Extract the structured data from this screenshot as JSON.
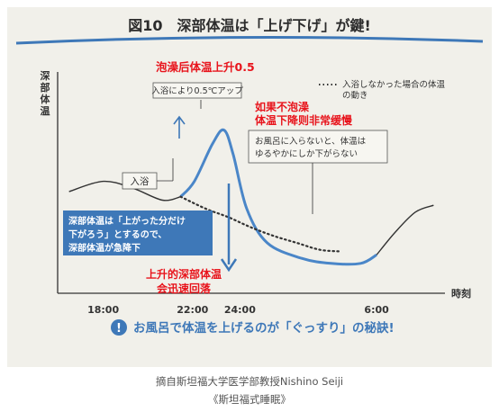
{
  "figure_title": "図10　深部体温は「上げ下げ」が鍵!",
  "chart_data": {
    "type": "line",
    "ylabel": "深部体温",
    "xlabel": "時刻",
    "x_ticks": [
      "18:00",
      "22:00",
      "24:00",
      "6:00"
    ],
    "series": [
      {
        "name": "入浴",
        "style": "solid",
        "color": "#4a86c8",
        "points": [
          [
            16.5,
            0.5
          ],
          [
            18.0,
            0.56
          ],
          [
            19.3,
            0.52
          ],
          [
            20.6,
            0.45
          ],
          [
            21.4,
            0.47
          ],
          [
            22.0,
            0.56
          ],
          [
            22.8,
            0.78
          ],
          [
            23.3,
            0.86
          ],
          [
            23.7,
            0.72
          ],
          [
            24.3,
            0.4
          ],
          [
            25.2,
            0.2
          ],
          [
            26.7,
            0.11
          ],
          [
            28.0,
            0.08
          ],
          [
            29.3,
            0.08
          ],
          [
            30.0,
            0.13
          ],
          [
            30.8,
            0.26
          ],
          [
            31.7,
            0.38
          ],
          [
            32.5,
            0.42
          ]
        ]
      },
      {
        "name": "入浴しなかった場合の体温の動き",
        "style": "dotted",
        "color": "#333333",
        "points": [
          [
            21.4,
            0.47
          ],
          [
            22.5,
            0.4
          ],
          [
            23.5,
            0.35
          ],
          [
            24.5,
            0.29
          ],
          [
            25.5,
            0.24
          ],
          [
            26.5,
            0.2
          ],
          [
            27.5,
            0.16
          ],
          [
            28.4,
            0.15
          ]
        ]
      }
    ],
    "grid": false
  },
  "labels": {
    "bath_rise_note": "入浴により0.5℃アップ",
    "bath_label": "入浴",
    "no_bath_legend": "入浴しなかった場合の体温の動き",
    "no_bath_note_1": "お風呂に入らないと、体温は",
    "no_bath_note_2": "ゆるやかにしか下がらない",
    "drop_note_1": "深部体温は「上がった分だけ",
    "drop_note_2": "下がろう」とするので、",
    "drop_note_3": "深部体温が急降下",
    "footer_text": "お風呂で体温を上げるのが「ぐっすり」の秘訣!",
    "footer_icon": "!"
  },
  "annotations_zh": {
    "rise": "泡澡后体温上升0.5",
    "no_bath_1": "如果不泡澡",
    "no_bath_2": "体温下降则非常缓慢",
    "drop_1": "上升的深部体温",
    "drop_2": "会迅速回落"
  },
  "caption": {
    "line1": "摘自斯坦福大学医学部教授Nishino Seiji",
    "line2": "《斯坦福式睡眠》"
  },
  "colors": {
    "accent_blue": "#3e78b8",
    "annotation_red": "#e8141c",
    "paper": "#f1f0ea"
  }
}
